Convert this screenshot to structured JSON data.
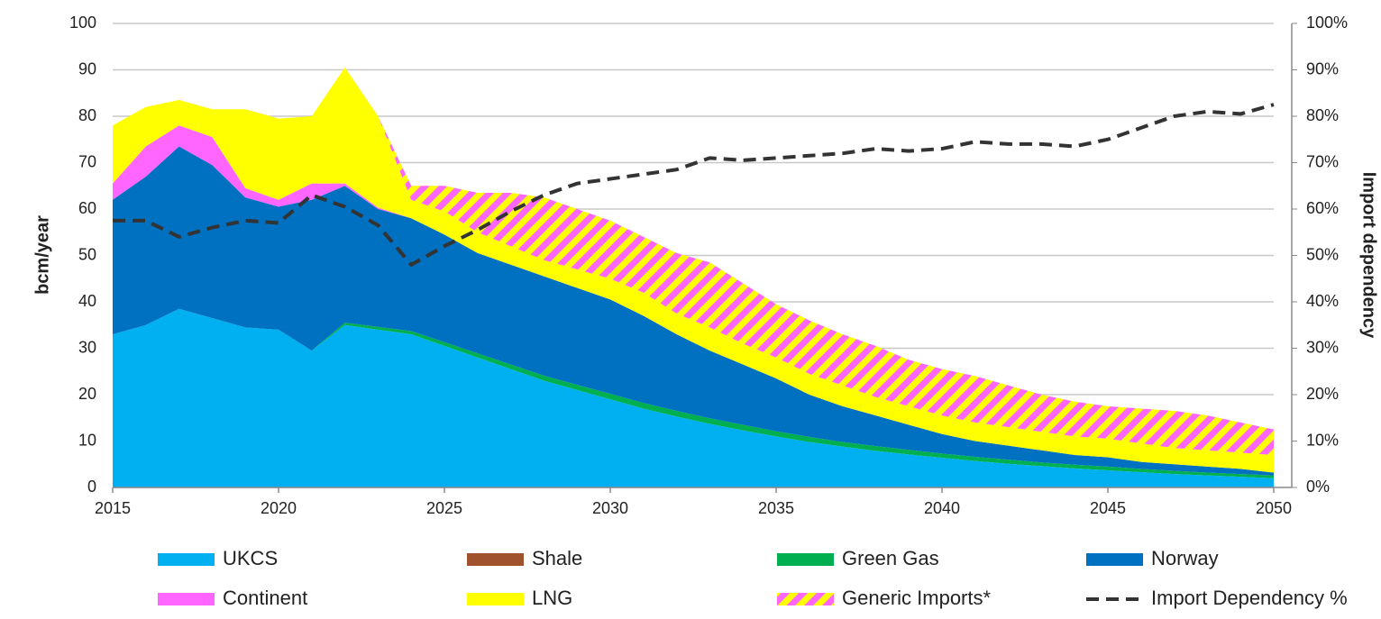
{
  "chart_data": {
    "type": "area",
    "y_label": "bcm/year",
    "y2_label": "Import dependency",
    "x": [
      2015,
      2016,
      2017,
      2018,
      2019,
      2020,
      2021,
      2022,
      2023,
      2024,
      2025,
      2026,
      2027,
      2028,
      2029,
      2030,
      2031,
      2032,
      2033,
      2034,
      2035,
      2036,
      2037,
      2038,
      2039,
      2040,
      2041,
      2042,
      2043,
      2044,
      2045,
      2046,
      2047,
      2048,
      2049,
      2050
    ],
    "xlim": [
      2015,
      2050
    ],
    "xticks": [
      2015,
      2020,
      2025,
      2030,
      2035,
      2040,
      2045,
      2050
    ],
    "ylim": [
      0,
      100
    ],
    "yticks": [
      0,
      10,
      20,
      30,
      40,
      50,
      60,
      70,
      80,
      90,
      100
    ],
    "y2lim": [
      0,
      100
    ],
    "y2ticks": [
      {
        "value": 0,
        "label": "0%"
      },
      {
        "value": 10,
        "label": "10%"
      },
      {
        "value": 20,
        "label": "20%"
      },
      {
        "value": 30,
        "label": "30%"
      },
      {
        "value": 40,
        "label": "40%"
      },
      {
        "value": 50,
        "label": "50%"
      },
      {
        "value": 60,
        "label": "60%"
      },
      {
        "value": 70,
        "label": "70%"
      },
      {
        "value": 80,
        "label": "80%"
      },
      {
        "value": 90,
        "label": "90%"
      },
      {
        "value": 100,
        "label": "100%"
      }
    ],
    "grid": true,
    "stacked": true,
    "series": [
      {
        "name": "UKCS",
        "color": "#00b0f0",
        "values": [
          33,
          35,
          38.5,
          36.5,
          34.5,
          34,
          29.5,
          35,
          34,
          33,
          30.5,
          28,
          25.5,
          23,
          21,
          19,
          17,
          15.3,
          13.7,
          12.3,
          11,
          9.8,
          8.8,
          7.9,
          7.1,
          6.4,
          5.7,
          5.1,
          4.6,
          4.1,
          3.7,
          3.3,
          2.9,
          2.6,
          2.3,
          2.0
        ]
      },
      {
        "name": "Shale",
        "color": "#a0522d",
        "values": [
          0,
          0,
          0,
          0,
          0,
          0,
          0,
          0,
          0,
          0,
          0,
          0,
          0,
          0,
          0,
          0,
          0,
          0,
          0,
          0,
          0,
          0,
          0,
          0,
          0,
          0,
          0,
          0,
          0,
          0,
          0,
          0,
          0,
          0,
          0,
          0
        ]
      },
      {
        "name": "Green Gas",
        "color": "#00b050",
        "values": [
          0,
          0,
          0,
          0,
          0,
          0,
          0,
          0.5,
          0.6,
          0.7,
          0.8,
          0.9,
          1,
          1.1,
          1.1,
          1.2,
          1.2,
          1.2,
          1.2,
          1.2,
          1.1,
          1.1,
          1,
          1,
          1,
          0.9,
          0.9,
          0.9,
          0.8,
          0.8,
          0.8,
          0.7,
          0.7,
          0.6,
          0.6,
          0.6
        ]
      },
      {
        "name": "Norway",
        "color": "#0070c0",
        "values": [
          29,
          32,
          35,
          33,
          28,
          26.5,
          32.5,
          29.5,
          25.4,
          24.3,
          23.2,
          21.6,
          21.5,
          21.4,
          20.9,
          20.3,
          18.8,
          16.5,
          14.6,
          13,
          11.4,
          9.1,
          7.7,
          6.6,
          5.4,
          4.2,
          3.4,
          3,
          2.6,
          2.1,
          2,
          1.5,
          1.4,
          1.3,
          1.1,
          0.6
        ]
      },
      {
        "name": "Continent",
        "color": "#ff66ff",
        "values": [
          3.5,
          6.5,
          4.5,
          6,
          2,
          1.5,
          3.5,
          0.5,
          0.3,
          0,
          0,
          0,
          0,
          0,
          0,
          0,
          0,
          0,
          0,
          0,
          0,
          0,
          0,
          0,
          0,
          0,
          0,
          0,
          0,
          0,
          0,
          0,
          0,
          0,
          0,
          0
        ]
      },
      {
        "name": "LNG",
        "color": "#ffff00",
        "values": [
          12.5,
          8.5,
          5.5,
          6,
          17,
          17.5,
          14.5,
          25,
          19.7,
          4,
          5,
          4.5,
          4,
          3.5,
          4,
          4.5,
          5,
          4.5,
          5,
          4.5,
          4.5,
          4.5,
          4.5,
          4,
          4,
          4,
          4,
          4,
          4,
          4,
          4,
          4,
          3.5,
          3.5,
          3.5,
          3.8
        ]
      },
      {
        "name": "Generic Imports*",
        "color": "#ff66ff",
        "hatch_color": "#ffff00",
        "values": [
          0,
          0,
          0,
          0,
          0,
          0,
          0,
          0,
          0,
          3,
          5.5,
          8.5,
          11.5,
          13.5,
          13,
          12.5,
          12,
          13,
          14,
          13,
          11.5,
          11.5,
          11,
          11,
          10,
          10,
          10,
          9,
          8,
          7.5,
          7,
          7.5,
          8,
          7.5,
          6.5,
          5.5
        ]
      },
      {
        "name": "Import Dependency %",
        "color": "#333333",
        "type": "line",
        "dashed": true,
        "axis": "y2",
        "values": [
          57.5,
          57.5,
          54,
          56,
          57.5,
          57,
          63,
          60.5,
          56.5,
          48,
          52,
          55.5,
          59.5,
          63,
          65.5,
          66.5,
          67.5,
          68.5,
          71,
          70.5,
          71,
          71.5,
          72,
          73,
          72.5,
          73,
          74.5,
          74,
          74,
          73.5,
          75,
          77.5,
          80,
          81,
          80.5,
          82.5
        ]
      }
    ]
  }
}
